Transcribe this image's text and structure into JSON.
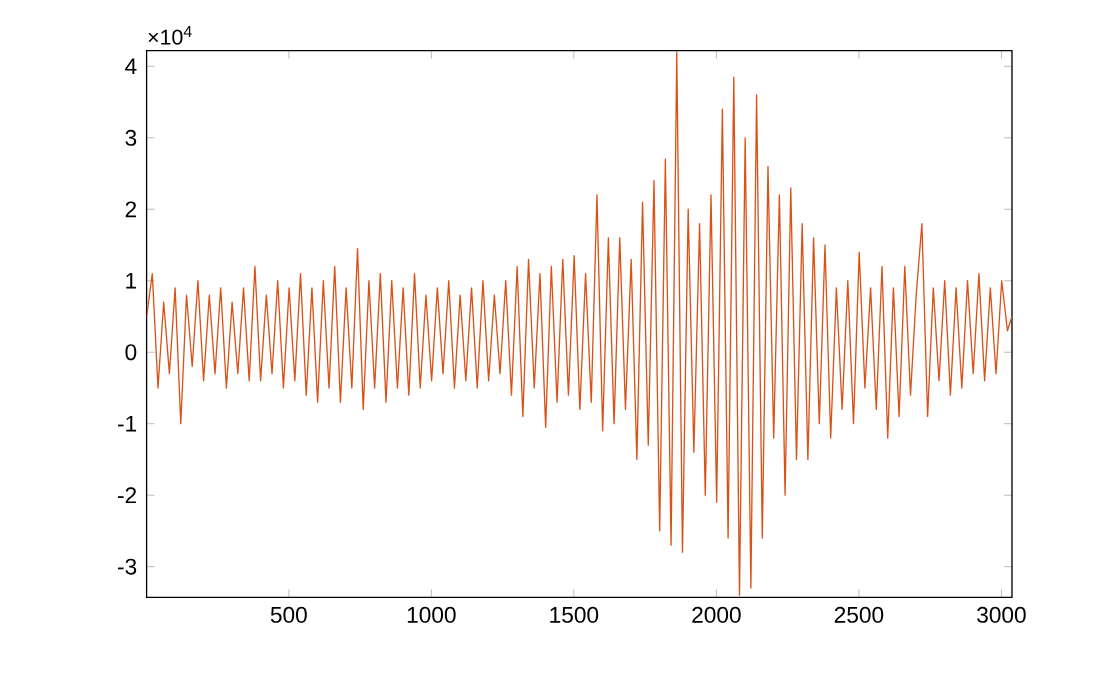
{
  "chart_data": {
    "type": "line",
    "annotations": [
      "×10$^{4}$"
    ],
    "xlim": [
      1,
      3037
    ],
    "ylim": [
      -3.43,
      4.22
    ],
    "xticks": [
      500,
      1000,
      1500,
      2000,
      2500,
      3000
    ],
    "yticks": [
      -3,
      -2,
      -1,
      0,
      1,
      2,
      3,
      4
    ],
    "marker": "none",
    "line_style": "solid",
    "x": [
      1,
      21,
      41,
      61,
      81,
      101,
      121,
      141,
      161,
      181,
      201,
      221,
      241,
      261,
      281,
      301,
      321,
      341,
      361,
      381,
      401,
      421,
      441,
      461,
      481,
      501,
      521,
      541,
      561,
      581,
      601,
      621,
      641,
      661,
      681,
      701,
      721,
      741,
      761,
      781,
      801,
      821,
      841,
      861,
      881,
      901,
      921,
      941,
      961,
      981,
      1001,
      1021,
      1041,
      1061,
      1081,
      1101,
      1121,
      1141,
      1161,
      1181,
      1201,
      1221,
      1241,
      1261,
      1281,
      1301,
      1321,
      1341,
      1361,
      1381,
      1401,
      1421,
      1441,
      1461,
      1481,
      1501,
      1521,
      1541,
      1561,
      1581,
      1601,
      1621,
      1641,
      1661,
      1681,
      1701,
      1721,
      1741,
      1761,
      1781,
      1801,
      1821,
      1841,
      1861,
      1881,
      1901,
      1921,
      1941,
      1961,
      1981,
      2001,
      2021,
      2041,
      2061,
      2081,
      2101,
      2121,
      2141,
      2161,
      2181,
      2201,
      2221,
      2241,
      2261,
      2281,
      2301,
      2321,
      2341,
      2361,
      2381,
      2401,
      2421,
      2441,
      2461,
      2481,
      2501,
      2521,
      2541,
      2561,
      2581,
      2601,
      2621,
      2641,
      2661,
      2681,
      2701,
      2721,
      2741,
      2761,
      2781,
      2801,
      2821,
      2841,
      2861,
      2881,
      2901,
      2921,
      2941,
      2961,
      2981,
      3001,
      3021,
      3037
    ],
    "series": [
      {
        "color": "#d95319",
        "values": [
          0.5,
          1.1,
          -0.5,
          0.7,
          -0.3,
          0.9,
          -1.0,
          0.8,
          -0.2,
          1.0,
          -0.4,
          0.8,
          -0.3,
          0.9,
          -0.5,
          0.7,
          -0.3,
          0.9,
          -0.4,
          1.2,
          -0.4,
          0.8,
          -0.3,
          1.0,
          -0.5,
          0.9,
          -0.4,
          1.1,
          -0.6,
          0.9,
          -0.7,
          1.0,
          -0.5,
          1.2,
          -0.7,
          0.9,
          -0.5,
          1.45,
          -0.8,
          1.0,
          -0.5,
          1.1,
          -0.7,
          1.0,
          -0.5,
          0.9,
          -0.6,
          1.1,
          -0.5,
          0.8,
          -0.4,
          0.9,
          -0.3,
          1.0,
          -0.5,
          0.8,
          -0.4,
          0.9,
          -0.5,
          1.0,
          -0.4,
          0.8,
          -0.3,
          1.0,
          -0.6,
          1.2,
          -0.9,
          1.3,
          -0.5,
          1.1,
          -1.05,
          1.2,
          -0.7,
          1.3,
          -0.6,
          1.35,
          -0.8,
          1.1,
          -0.7,
          2.2,
          -1.1,
          1.6,
          -1.0,
          1.6,
          -0.8,
          1.3,
          -1.5,
          2.1,
          -1.3,
          2.4,
          -2.5,
          2.7,
          -2.7,
          4.2,
          -2.8,
          2.0,
          -1.4,
          1.8,
          -2.0,
          2.2,
          -2.1,
          3.4,
          -2.6,
          3.85,
          -3.4,
          3.0,
          -3.3,
          3.6,
          -2.6,
          2.6,
          -1.2,
          2.2,
          -2.0,
          2.3,
          -1.5,
          1.8,
          -1.5,
          1.6,
          -1.0,
          1.5,
          -1.2,
          0.9,
          -0.8,
          1.0,
          -1.0,
          1.4,
          -0.5,
          0.9,
          -0.8,
          1.2,
          -1.2,
          0.9,
          -0.9,
          1.2,
          -0.6,
          0.8,
          1.8,
          -0.9,
          0.9,
          -0.4,
          1.0,
          -0.6,
          0.9,
          -0.5,
          1.0,
          -0.3,
          1.1,
          -0.4,
          0.9,
          -0.3,
          1.0,
          0.3,
          0.5
        ]
      }
    ]
  }
}
